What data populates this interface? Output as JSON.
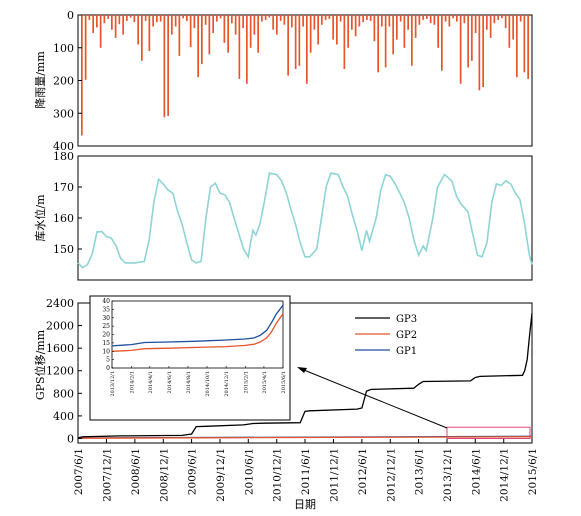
{
  "chart_data": [
    {
      "type": "bar",
      "ylabel": "降雨量/mm",
      "ylim": [
        0,
        400
      ],
      "y_inverted": true,
      "yticks": [
        "0",
        "100",
        "200",
        "300",
        "400"
      ],
      "bar_color": "#e8552b",
      "series": [
        {
          "values": [
            368,
            198,
            15,
            55,
            38,
            100,
            25,
            12,
            45,
            70,
            28,
            60,
            18,
            8,
            22,
            90,
            140,
            18,
            110,
            35,
            22,
            20,
            312,
            308,
            60,
            35,
            125,
            10,
            18,
            98,
            40,
            190,
            150,
            30,
            120,
            55,
            20,
            10,
            85,
            115,
            25,
            60,
            195,
            40,
            210,
            100,
            60,
            115,
            20,
            15,
            8,
            45,
            60,
            18,
            30,
            185,
            38,
            165,
            155,
            35,
            210,
            115,
            45,
            90,
            30,
            15,
            12,
            75,
            90,
            20,
            165,
            100,
            45,
            65,
            35,
            22,
            15,
            18,
            80,
            175,
            35,
            160,
            35,
            120,
            75,
            20,
            100,
            45,
            155,
            70,
            30,
            15,
            12,
            25,
            30,
            100,
            170,
            20,
            35,
            10,
            20,
            210,
            25,
            160,
            140,
            55,
            230,
            220,
            45,
            70,
            25,
            15,
            10,
            40,
            100,
            75,
            190,
            20,
            175,
            195
          ]
        }
      ]
    },
    {
      "type": "line",
      "ylabel": "库水位/m",
      "ylim": [
        140,
        180
      ],
      "yticks": [
        "150",
        "160",
        "170",
        "180"
      ],
      "line_color": "#8fd4d4",
      "x_range": [
        "2007-06-01",
        "2015-06-01"
      ],
      "points": [
        [
          "2007-06-01",
          145.5
        ],
        [
          "2007-07-01",
          144.0
        ],
        [
          "2007-08-01",
          145.0
        ],
        [
          "2007-09-01",
          148.5
        ],
        [
          "2007-10-01",
          155.5
        ],
        [
          "2007-11-01",
          155.6
        ],
        [
          "2007-12-01",
          154.0
        ],
        [
          "2008-01-01",
          153.5
        ],
        [
          "2008-02-01",
          151.0
        ],
        [
          "2008-03-01",
          147.0
        ],
        [
          "2008-04-01",
          145.5
        ],
        [
          "2008-06-01",
          145.5
        ],
        [
          "2008-08-01",
          146.0
        ],
        [
          "2008-09-01",
          153.0
        ],
        [
          "2008-10-01",
          165.0
        ],
        [
          "2008-11-01",
          172.5
        ],
        [
          "2008-12-01",
          171.0
        ],
        [
          "2009-01-01",
          169.0
        ],
        [
          "2009-02-01",
          168.0
        ],
        [
          "2009-03-01",
          162.5
        ],
        [
          "2009-04-01",
          158.0
        ],
        [
          "2009-05-01",
          152.0
        ],
        [
          "2009-06-01",
          146.5
        ],
        [
          "2009-07-01",
          145.5
        ],
        [
          "2009-08-01",
          146.0
        ],
        [
          "2009-09-01",
          160.0
        ],
        [
          "2009-10-01",
          170.0
        ],
        [
          "2009-11-01",
          171.2
        ],
        [
          "2009-12-01",
          168.0
        ],
        [
          "2010-01-01",
          167.5
        ],
        [
          "2010-02-01",
          165.0
        ],
        [
          "2010-03-01",
          160.0
        ],
        [
          "2010-04-01",
          155.0
        ],
        [
          "2010-05-01",
          150.0
        ],
        [
          "2010-06-01",
          147.5
        ],
        [
          "2010-06-15",
          152.0
        ],
        [
          "2010-07-01",
          156.0
        ],
        [
          "2010-07-20",
          154.5
        ],
        [
          "2010-08-15",
          158.0
        ],
        [
          "2010-09-15",
          166.0
        ],
        [
          "2010-10-15",
          174.5
        ],
        [
          "2010-12-01",
          174.0
        ],
        [
          "2011-01-01",
          172.0
        ],
        [
          "2011-02-01",
          168.0
        ],
        [
          "2011-03-01",
          163.0
        ],
        [
          "2011-04-01",
          158.0
        ],
        [
          "2011-05-01",
          152.0
        ],
        [
          "2011-06-01",
          147.5
        ],
        [
          "2011-07-01",
          147.5
        ],
        [
          "2011-08-15",
          150.0
        ],
        [
          "2011-09-15",
          160.0
        ],
        [
          "2011-10-15",
          170.0
        ],
        [
          "2011-11-15",
          174.5
        ],
        [
          "2012-01-01",
          174.0
        ],
        [
          "2012-02-01",
          170.0
        ],
        [
          "2012-03-01",
          167.0
        ],
        [
          "2012-04-01",
          161.0
        ],
        [
          "2012-05-01",
          156.0
        ],
        [
          "2012-06-01",
          149.5
        ],
        [
          "2012-07-01",
          156.0
        ],
        [
          "2012-07-20",
          152.5
        ],
        [
          "2012-09-01",
          160.0
        ],
        [
          "2012-10-01",
          169.0
        ],
        [
          "2012-11-01",
          174.0
        ],
        [
          "2012-12-01",
          173.5
        ],
        [
          "2013-01-01",
          171.0
        ],
        [
          "2013-02-01",
          168.0
        ],
        [
          "2013-03-01",
          165.0
        ],
        [
          "2013-04-01",
          160.0
        ],
        [
          "2013-05-01",
          153.0
        ],
        [
          "2013-06-01",
          148.0
        ],
        [
          "2013-07-01",
          151.0
        ],
        [
          "2013-07-20",
          149.5
        ],
        [
          "2013-09-01",
          160.0
        ],
        [
          "2013-10-01",
          170.0
        ],
        [
          "2013-11-15",
          174.0
        ],
        [
          "2014-01-01",
          172.0
        ],
        [
          "2014-02-01",
          167.0
        ],
        [
          "2014-03-01",
          164.5
        ],
        [
          "2014-04-15",
          162.0
        ],
        [
          "2014-05-15",
          155.0
        ],
        [
          "2014-06-15",
          148.0
        ],
        [
          "2014-07-15",
          147.5
        ],
        [
          "2014-08-15",
          152.0
        ],
        [
          "2014-09-15",
          165.0
        ],
        [
          "2014-10-15",
          171.0
        ],
        [
          "2014-11-15",
          170.5
        ],
        [
          "2014-12-15",
          172.0
        ],
        [
          "2015-01-15",
          171.0
        ],
        [
          "2015-02-15",
          168.0
        ],
        [
          "2015-03-15",
          166.0
        ],
        [
          "2015-04-15",
          158.0
        ],
        [
          "2015-05-15",
          148.0
        ],
        [
          "2015-06-01",
          145.0
        ]
      ]
    },
    {
      "type": "line",
      "ylabel": "GPS位移/mm",
      "ylim": [
        -80,
        2400
      ],
      "yticks": [
        "0",
        "400",
        "800",
        "1200",
        "1600",
        "2000",
        "2400"
      ],
      "xlabel": "日期",
      "x_range": [
        "2007-06-01",
        "2015-06-01"
      ],
      "x_ticks": [
        "2007/6/1",
        "2007/12/1",
        "2008/6/1",
        "2008/12/1",
        "2009/6/1",
        "2009/12/1",
        "2010/6/1",
        "2010/12/1",
        "2011/6/1",
        "2011/12/1",
        "2012/6/1",
        "2012/12/1",
        "2013/6/1",
        "2013/12/1",
        "2014/6/1",
        "2014/12/1",
        "2015/6/1"
      ],
      "legend": [
        "GP3",
        "GP2",
        "GP1"
      ],
      "series": [
        {
          "name": "GP3",
          "color": "#000000",
          "points": [
            [
              "2007-06-01",
              10
            ],
            [
              "2007-07-01",
              30
            ],
            [
              "2008-03-01",
              45
            ],
            [
              "2009-04-01",
              55
            ],
            [
              "2009-06-01",
              80
            ],
            [
              "2009-07-01",
              210
            ],
            [
              "2009-09-01",
              215
            ],
            [
              "2010-05-01",
              240
            ],
            [
              "2010-07-01",
              265
            ],
            [
              "2010-09-01",
              270
            ],
            [
              "2011-05-01",
              280
            ],
            [
              "2011-06-01",
              480
            ],
            [
              "2011-07-01",
              490
            ],
            [
              "2012-05-01",
              520
            ],
            [
              "2012-06-01",
              540
            ],
            [
              "2012-07-01",
              840
            ],
            [
              "2012-08-01",
              870
            ],
            [
              "2013-05-01",
              890
            ],
            [
              "2013-06-01",
              960
            ],
            [
              "2013-07-01",
              1010
            ],
            [
              "2014-05-01",
              1020
            ],
            [
              "2014-06-01",
              1080
            ],
            [
              "2014-07-01",
              1100
            ],
            [
              "2015-04-01",
              1120
            ],
            [
              "2015-04-15",
              1200
            ],
            [
              "2015-05-01",
              1400
            ],
            [
              "2015-05-15",
              1800
            ],
            [
              "2015-06-01",
              2220
            ]
          ]
        },
        {
          "name": "GP2",
          "color": "#e8552b",
          "points": [
            [
              "2007-06-01",
              5
            ],
            [
              "2015-06-01",
              30
            ]
          ]
        },
        {
          "name": "GP1",
          "color": "#1f4e9c",
          "points": [
            [
              "2007-06-01",
              8
            ],
            [
              "2015-06-01",
              38
            ]
          ]
        }
      ],
      "highlight_box": {
        "x0": "2013-12-01",
        "x1": "2015-06-01",
        "y0": 0,
        "y1": 200,
        "color": "#e0457b"
      },
      "inset": {
        "ylim": [
          0,
          40
        ],
        "yticks": [
          "0",
          "5",
          "10",
          "15",
          "20",
          "25",
          "30",
          "35",
          "40"
        ],
        "x_ticks": [
          "2013/12/1",
          "2014/2/1",
          "2014/4/1",
          "2014/6/1",
          "2014/8/1",
          "2014/10/1",
          "2014/12/1",
          "2015/2/1",
          "2015/4/1",
          "2015/6/1"
        ],
        "series": [
          {
            "name": "GP1",
            "color": "#1f4e9c",
            "points": [
              [
                "2013-12-01",
                13.2
              ],
              [
                "2014-02-01",
                14.0
              ],
              [
                "2014-03-15",
                15.2
              ],
              [
                "2014-06-01",
                15.5
              ],
              [
                "2014-09-01",
                16.0
              ],
              [
                "2014-12-01",
                16.7
              ],
              [
                "2015-02-01",
                17.3
              ],
              [
                "2015-03-01",
                18.0
              ],
              [
                "2015-03-20",
                19.5
              ],
              [
                "2015-04-10",
                22.5
              ],
              [
                "2015-04-25",
                27.0
              ],
              [
                "2015-05-10",
                32.0
              ],
              [
                "2015-06-01",
                37.5
              ]
            ]
          },
          {
            "name": "GP2",
            "color": "#e8552b",
            "points": [
              [
                "2013-12-01",
                10.0
              ],
              [
                "2014-02-01",
                10.5
              ],
              [
                "2014-03-15",
                11.5
              ],
              [
                "2014-06-01",
                11.8
              ],
              [
                "2014-09-01",
                12.3
              ],
              [
                "2014-12-01",
                12.8
              ],
              [
                "2015-02-01",
                13.5
              ],
              [
                "2015-03-01",
                14.2
              ],
              [
                "2015-03-20",
                15.5
              ],
              [
                "2015-04-10",
                18.0
              ],
              [
                "2015-04-25",
                21.5
              ],
              [
                "2015-05-10",
                26.5
              ],
              [
                "2015-06-01",
                32.5
              ]
            ]
          }
        ]
      }
    }
  ]
}
